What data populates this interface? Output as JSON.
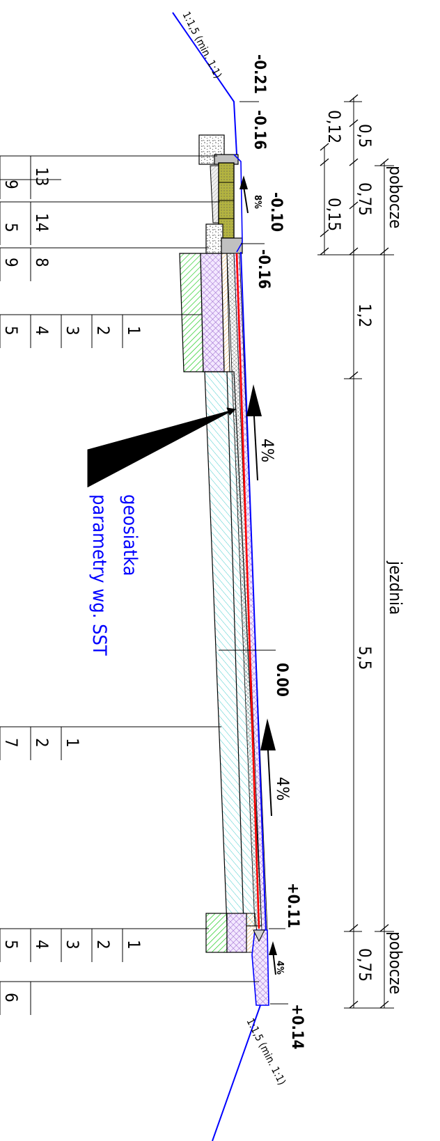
{
  "slopes": {
    "top": "1:1,5 (min. 1:1)",
    "bottom": "1:1,5 (min. 1:1)"
  },
  "elevations": {
    "e1": "-0.21",
    "e2": "-0.16",
    "e3": "-0.10",
    "e4": "-0.16",
    "e5": "0.00",
    "e6": "+0.11",
    "e7": "+0.14"
  },
  "grades": {
    "shoulder_top": "8%",
    "road_top": "4%",
    "road_bottom": "4%",
    "shoulder_bottom": "4%"
  },
  "dimensions": {
    "top_shoulder_1": "0,5",
    "top_shoulder_2": "0,12",
    "top_shoulder_3": "0,75",
    "top_shoulder_4": "0,15",
    "inner": "1,2",
    "road_width": "5,5",
    "bottom_shoulder": "0,75"
  },
  "sections": {
    "shoulder_top": "pobocze",
    "road": "jezdnia",
    "shoulder_bottom": "pobocze"
  },
  "note": {
    "line1": "geosiatka",
    "line2": "parametry wg. SST"
  },
  "tables": {
    "t1": {
      "top": "13",
      "bottom": "9"
    },
    "t2": {
      "top": "14",
      "bottom": "5"
    },
    "t3": {
      "top": "8",
      "bottom": "9"
    },
    "t4": [
      "1",
      "2",
      "3",
      "4",
      "5"
    ],
    "t5": [
      "1",
      "2",
      "7"
    ],
    "t6": [
      "1",
      "2",
      "3",
      "4",
      "5"
    ],
    "t7": [
      "6"
    ]
  },
  "colors": {
    "outline": "#0000ff",
    "geogrid": "#ff0000",
    "green": "#22cc22",
    "violet": "#9966cc",
    "cyan": "#44cccc",
    "olive": "#b3b340"
  }
}
